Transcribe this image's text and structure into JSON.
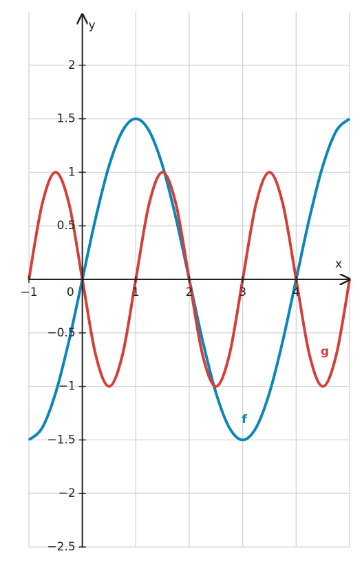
{
  "chart_data": {
    "type": "line",
    "xlabel": "x",
    "ylabel": "y",
    "x": [
      -1,
      -0.75,
      -0.5,
      -0.25,
      0,
      0.25,
      0.5,
      0.75,
      1,
      1.25,
      1.5,
      1.75,
      2,
      2.25,
      2.5,
      2.75,
      3,
      3.25,
      3.5,
      3.75,
      4,
      4.25,
      4.5,
      4.75,
      5
    ],
    "series": [
      {
        "name": "f",
        "color": "#0a86b8",
        "values": [
          -1.5,
          -1.386,
          -1.061,
          -0.574,
          0,
          0.574,
          1.061,
          1.386,
          1.5,
          1.386,
          1.061,
          0.574,
          0,
          -0.574,
          -1.061,
          -1.386,
          -1.5,
          -1.386,
          -1.061,
          -0.574,
          0,
          0.574,
          1.061,
          1.386,
          1.5
        ]
      },
      {
        "name": "g",
        "color": "#d43f3a",
        "values": [
          0,
          0.707,
          1,
          0.707,
          0,
          -0.707,
          -1,
          -0.707,
          0,
          0.707,
          1,
          0.707,
          0,
          -0.707,
          -1,
          -0.707,
          0,
          0.707,
          1,
          0.707,
          0,
          -0.707,
          -1,
          -0.707,
          0
        ]
      }
    ],
    "xlim": [
      -1,
      5
    ],
    "ylim": [
      -2.5,
      2.5
    ],
    "xticks": [
      {
        "value": -1,
        "label": "−1"
      },
      0,
      1,
      2,
      3,
      4
    ],
    "yticks": [
      {
        "value": -2.5,
        "label": "−2.5"
      },
      {
        "value": -2,
        "label": "−2"
      },
      {
        "value": -1.5,
        "label": "−1.5"
      },
      {
        "value": -1,
        "label": "−1"
      },
      {
        "value": -0.5,
        "label": "−0.5"
      },
      0.5,
      1,
      1.5,
      2
    ],
    "grid": true
  }
}
